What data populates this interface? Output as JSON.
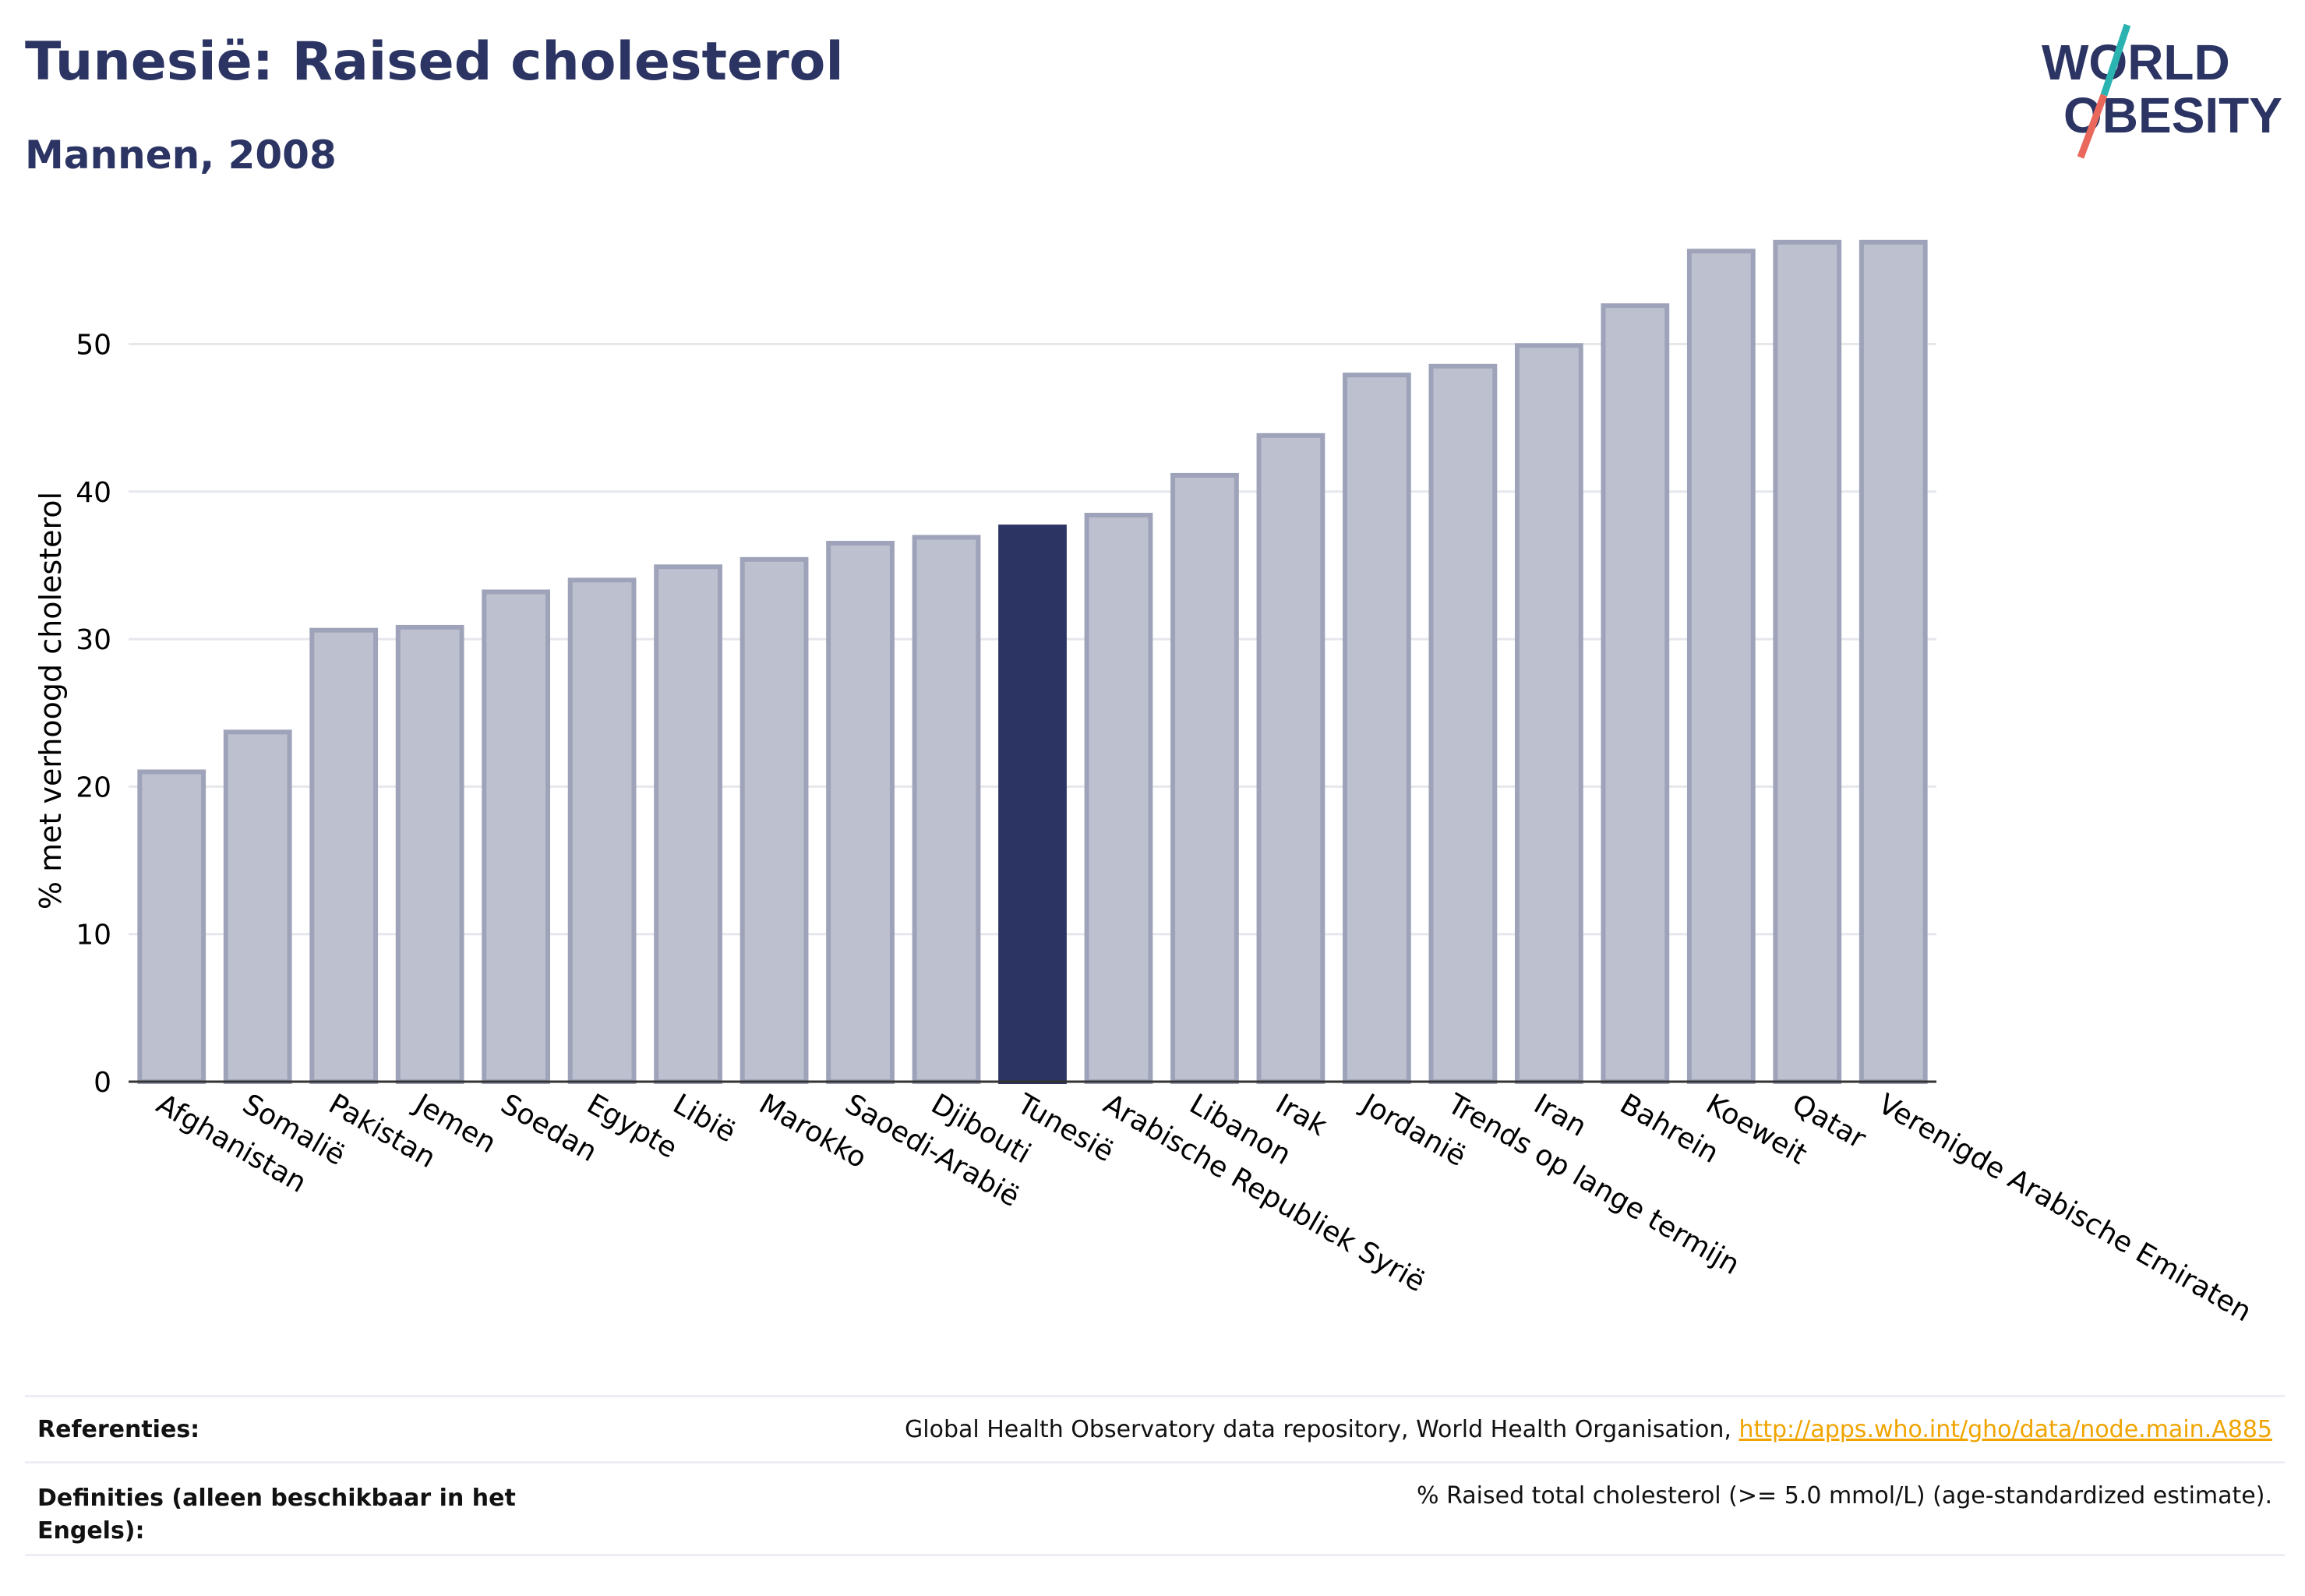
{
  "header": {
    "title": "Tunesië: Raised cholesterol",
    "subtitle": "Mannen, 2008"
  },
  "logo": {
    "line1": "WORLD",
    "line2": "OBESITY",
    "colors": {
      "text": "#2b3462",
      "accent_teal": "#2ab3b1",
      "accent_coral": "#e9685b"
    }
  },
  "chart_data": {
    "type": "bar",
    "ylabel": "% met verhoogd cholesterol",
    "xlabel": "",
    "ylim": [
      0,
      58
    ],
    "yticks": [
      0,
      10,
      20,
      30,
      40,
      50
    ],
    "grid": true,
    "highlight": "Tunesië",
    "colors": {
      "bar": "#bdc1cf",
      "bar_border": "#9ea3ba",
      "highlight": "#2b3462",
      "grid": "#e6e7ec",
      "axis": "#333333"
    },
    "categories": [
      "Afghanistan",
      "Somalië",
      "Pakistan",
      "Jemen",
      "Soedan",
      "Egypte",
      "Libië",
      "Marokko",
      "Saoedi-Arabië",
      "Djibouti",
      "Tunesië",
      "Arabische Republiek Syrië",
      "Libanon",
      "Irak",
      "Jordanië",
      "Trends op lange termijn",
      "Iran",
      "Bahrein",
      "Koeweit",
      "Qatar",
      "Verenigde Arabische Emiraten"
    ],
    "values": [
      21.0,
      23.7,
      30.6,
      30.8,
      33.2,
      34.0,
      34.9,
      35.4,
      36.5,
      36.9,
      37.6,
      38.4,
      41.1,
      43.8,
      47.9,
      48.5,
      49.9,
      52.6,
      56.3,
      56.9,
      56.9
    ]
  },
  "references": {
    "label": "Referenties:",
    "text": "Global Health Observatory data repository, World Health Organisation, ",
    "link": "http://apps.who.int/gho/data/node.main.A885"
  },
  "definitions": {
    "label": "Definities (alleen beschikbaar in het Engels):",
    "text": "% Raised total cholesterol (>= 5.0 mmol/L) (age-standardized estimate)."
  }
}
